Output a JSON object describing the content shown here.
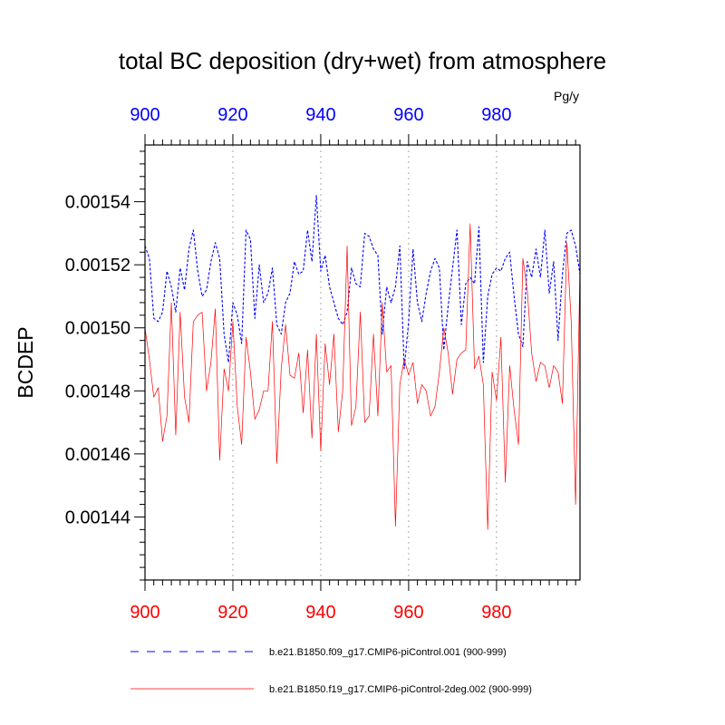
{
  "chart_data": {
    "type": "line",
    "title": "total BC deposition (dry+wet) from atmosphere",
    "units": "Pg/y",
    "ylabel": "BCDEP",
    "xlim": [
      900,
      999
    ],
    "ylim": [
      0.00142,
      0.001558
    ],
    "x_ticks": [
      900,
      920,
      940,
      960,
      980
    ],
    "x_tick_labels_bottom": [
      "900",
      "920",
      "940",
      "960",
      "980"
    ],
    "x_tick_labels_top": [
      "900",
      "920",
      "940",
      "960",
      "980"
    ],
    "y_ticks": [
      0.00144,
      0.00146,
      0.00148,
      0.0015,
      0.00152,
      0.00154
    ],
    "y_tick_labels": [
      "0.00144",
      "0.00146",
      "0.00148",
      "0.00150",
      "0.00152",
      "0.00154"
    ],
    "grid": "vertical dotted at major x ticks",
    "legend_position": "bottom",
    "colors": {
      "blue": "#0000ff",
      "red": "#ff0000",
      "axis": "#000000",
      "grid": "#aaaaaa"
    },
    "x": [
      900,
      901,
      902,
      903,
      904,
      905,
      906,
      907,
      908,
      909,
      910,
      911,
      912,
      913,
      914,
      915,
      916,
      917,
      918,
      919,
      920,
      921,
      922,
      923,
      924,
      925,
      926,
      927,
      928,
      929,
      930,
      931,
      932,
      933,
      934,
      935,
      936,
      937,
      938,
      939,
      940,
      941,
      942,
      943,
      944,
      945,
      946,
      947,
      948,
      949,
      950,
      951,
      952,
      953,
      954,
      955,
      956,
      957,
      958,
      959,
      960,
      961,
      962,
      963,
      964,
      965,
      966,
      967,
      968,
      969,
      970,
      971,
      972,
      973,
      974,
      975,
      976,
      977,
      978,
      979,
      980,
      981,
      982,
      983,
      984,
      985,
      986,
      987,
      988,
      989,
      990,
      991,
      992,
      993,
      994,
      995,
      996,
      997,
      998,
      999
    ],
    "series": [
      {
        "name": "b.e21.B1850.f09_g17.CMIP6-piControl.001 (900-999)",
        "color": "#0000ff",
        "style": "dashed",
        "values": [
          0.001526,
          0.001522,
          0.001503,
          0.001502,
          0.001505,
          0.001518,
          0.001513,
          0.001505,
          0.001519,
          0.001512,
          0.001525,
          0.001531,
          0.001518,
          0.00151,
          0.001512,
          0.001521,
          0.001527,
          0.001522,
          0.001498,
          0.001489,
          0.001508,
          0.001504,
          0.001495,
          0.001531,
          0.001528,
          0.001503,
          0.00152,
          0.001508,
          0.001511,
          0.001519,
          0.001501,
          0.001498,
          0.001508,
          0.001511,
          0.001521,
          0.001517,
          0.001518,
          0.001531,
          0.001521,
          0.001542,
          0.001518,
          0.001523,
          0.001513,
          0.001508,
          0.001503,
          0.001501,
          0.001505,
          0.001519,
          0.001514,
          0.001513,
          0.00153,
          0.001529,
          0.001525,
          0.001523,
          0.001498,
          0.001513,
          0.001508,
          0.001513,
          0.001526,
          0.001487,
          0.001502,
          0.001525,
          0.001508,
          0.001502,
          0.001511,
          0.001518,
          0.001522,
          0.001519,
          0.001493,
          0.001507,
          0.001519,
          0.001531,
          0.001501,
          0.001514,
          0.001516,
          0.001514,
          0.001532,
          0.001489,
          0.00151,
          0.001517,
          0.001519,
          0.001518,
          0.001522,
          0.001524,
          0.00151,
          0.001498,
          0.001494,
          0.001521,
          0.001516,
          0.001525,
          0.001516,
          0.001531,
          0.001511,
          0.001521,
          0.001496,
          0.001517,
          0.00153,
          0.001531,
          0.001526,
          0.001517
        ]
      },
      {
        "name": "b.e21.B1850.f19_g17.CMIP6-piControl-2deg.002 (900-999)",
        "color": "#ff0000",
        "style": "solid",
        "values": [
          0.0015,
          0.00149,
          0.001478,
          0.001481,
          0.001464,
          0.001472,
          0.001508,
          0.001466,
          0.001505,
          0.001478,
          0.00147,
          0.001502,
          0.001504,
          0.001505,
          0.00148,
          0.001489,
          0.001506,
          0.001458,
          0.001487,
          0.00148,
          0.001502,
          0.001475,
          0.001463,
          0.001497,
          0.001486,
          0.001471,
          0.001474,
          0.00148,
          0.00148,
          0.001502,
          0.001457,
          0.001487,
          0.001501,
          0.001485,
          0.001484,
          0.001492,
          0.001473,
          0.001493,
          0.001465,
          0.001498,
          0.001461,
          0.001495,
          0.001482,
          0.001498,
          0.001467,
          0.00148,
          0.001526,
          0.001469,
          0.001475,
          0.001505,
          0.00147,
          0.001472,
          0.001498,
          0.001472,
          0.001508,
          0.001486,
          0.001488,
          0.001437,
          0.001482,
          0.00149,
          0.001485,
          0.001489,
          0.001476,
          0.001482,
          0.00148,
          0.001472,
          0.001475,
          0.001486,
          0.0015,
          0.001492,
          0.001479,
          0.00149,
          0.001492,
          0.001493,
          0.001533,
          0.001487,
          0.001491,
          0.001482,
          0.001436,
          0.001486,
          0.001477,
          0.001497,
          0.001451,
          0.001488,
          0.001474,
          0.001463,
          0.001522,
          0.001512,
          0.001492,
          0.001483,
          0.001489,
          0.001488,
          0.001481,
          0.001488,
          0.001486,
          0.001476,
          0.001527,
          0.001502,
          0.001444,
          0.001519
        ]
      }
    ]
  }
}
